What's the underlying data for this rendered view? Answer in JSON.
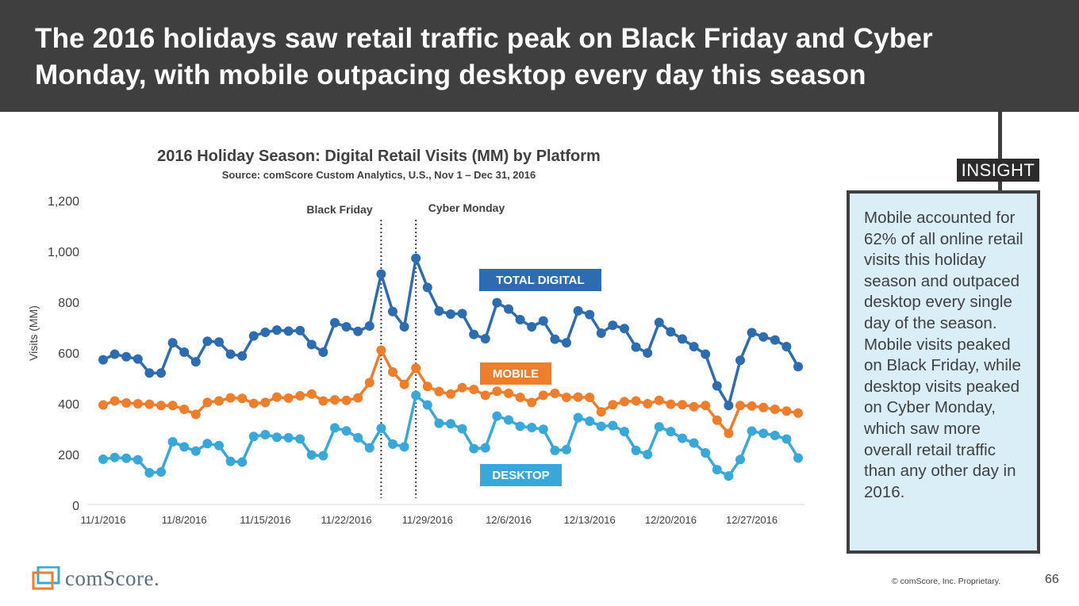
{
  "slide": {
    "title": "The 2016 holidays saw retail traffic peak on Black Friday and Cyber Monday, with mobile outpacing desktop every day this season",
    "insight_label": "INSIGHT",
    "insight_text": "Mobile accounted for 62% of all online retail visits this holiday season and outpaced desktop every single day of the season. Mobile visits peaked on Black Friday, while desktop visits peaked on Cyber Monday, which saw more overall retail traffic than any other day in 2016.",
    "logo_text": "comScore.",
    "copyright": "© comScore, Inc. Proprietary.",
    "page_number": "66"
  },
  "colors": {
    "total_digital": "#2e6cb0",
    "mobile": "#ee7d2c",
    "desktop": "#3aa7d9",
    "title_bar": "#3f3f3f",
    "insight_bg": "#d9eef7"
  },
  "chart_data": {
    "type": "line",
    "title": "2016 Holiday Season: Digital Retail Visits (MM) by Platform",
    "subtitle": "Source: comScore Custom Analytics, U.S., Nov 1 – Dec 31, 2016",
    "xlabel": "",
    "ylabel": "Visits (MM)",
    "ylim": [
      0,
      1200
    ],
    "yticks": [
      0,
      200,
      400,
      600,
      800,
      1000,
      1200
    ],
    "ytick_labels": [
      "0",
      "200",
      "400",
      "600",
      "800",
      "1,000",
      "1,200"
    ],
    "x_start": "11/1/2016",
    "x_end": "12/31/2016",
    "xtick_labels": [
      "11/1/2016",
      "11/8/2016",
      "11/15/2016",
      "11/22/2016",
      "11/29/2016",
      "12/6/2016",
      "12/13/2016",
      "12/20/2016",
      "12/27/2016"
    ],
    "grid": false,
    "annotations": [
      {
        "label": "Black Friday",
        "date": "11/25/2016"
      },
      {
        "label": "Cyber Monday",
        "date": "11/28/2016"
      }
    ],
    "series": [
      {
        "name": "TOTAL DIGITAL",
        "values": [
          570,
          592,
          582,
          573,
          518,
          518,
          637,
          600,
          562,
          643,
          640,
          592,
          585,
          664,
          678,
          687,
          683,
          685,
          630,
          600,
          716,
          700,
          682,
          703,
          908,
          760,
          700,
          970,
          855,
          762,
          750,
          752,
          670,
          653,
          795,
          770,
          728,
          700,
          723,
          651,
          637,
          763,
          748,
          675,
          706,
          693,
          620,
          597,
          717,
          680,
          652,
          622,
          592,
          467,
          390,
          568,
          677,
          660,
          648,
          622,
          543
        ]
      },
      {
        "name": "MOBILE",
        "values": [
          392,
          408,
          400,
          397,
          395,
          390,
          390,
          375,
          355,
          402,
          408,
          420,
          418,
          398,
          402,
          423,
          419,
          428,
          435,
          408,
          412,
          410,
          420,
          480,
          608,
          522,
          473,
          537,
          465,
          445,
          435,
          460,
          453,
          430,
          446,
          438,
          422,
          402,
          430,
          438,
          422,
          423,
          422,
          365,
          393,
          405,
          408,
          397,
          410,
          395,
          393,
          385,
          390,
          332,
          280,
          390,
          388,
          382,
          375,
          368,
          360
        ]
      },
      {
        "name": "DESKTOP",
        "values": [
          178,
          185,
          182,
          176,
          125,
          128,
          247,
          227,
          210,
          240,
          232,
          170,
          167,
          268,
          275,
          265,
          263,
          258,
          195,
          192,
          302,
          290,
          263,
          223,
          300,
          238,
          227,
          430,
          392,
          320,
          318,
          298,
          220,
          223,
          348,
          333,
          308,
          303,
          296,
          213,
          216,
          342,
          328,
          308,
          311,
          287,
          213,
          197,
          306,
          287,
          261,
          242,
          203,
          137,
          112,
          177,
          289,
          280,
          272,
          258,
          183
        ]
      }
    ]
  }
}
